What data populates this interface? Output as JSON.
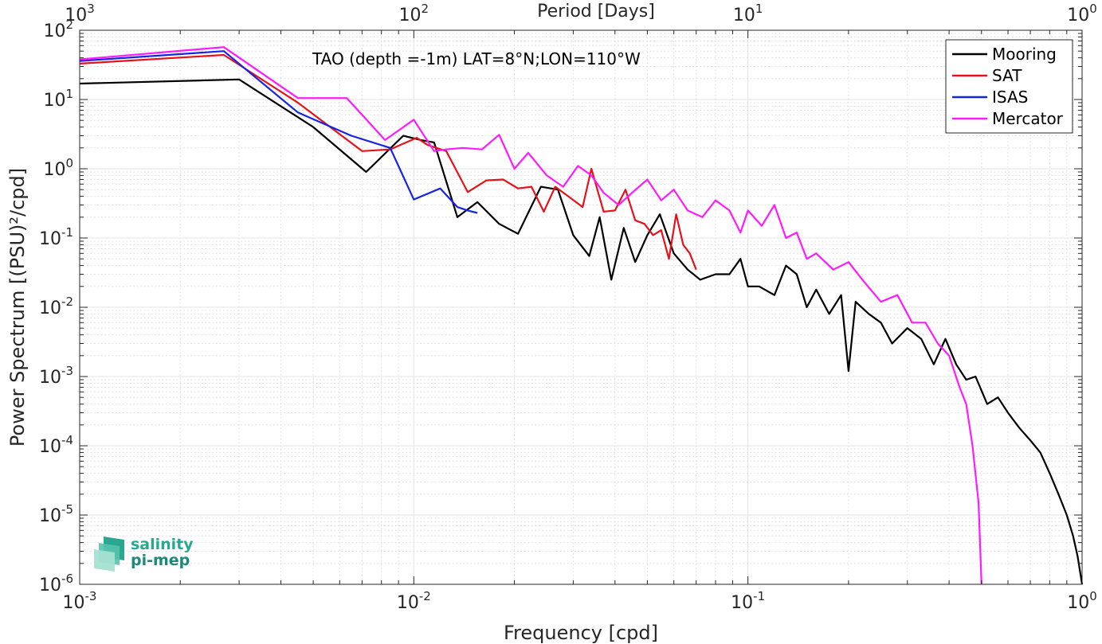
{
  "chart_data": {
    "type": "line",
    "title": "TAO (depth =-1m) LAT=8°N;LON=110°W",
    "xlabel": "Frequency [cpd]",
    "ylabel": "Power Spectrum [(PSU)²/cpd]",
    "x2label": "Period [Days]",
    "xscale": "log",
    "yscale": "log",
    "xlim": [
      0.001,
      1
    ],
    "ylim": [
      1e-06,
      100
    ],
    "grid": true,
    "legend_position": "top-right",
    "x_ticks": [
      {
        "base": "10",
        "exp": "-3",
        "v": 0.001
      },
      {
        "base": "10",
        "exp": "-2",
        "v": 0.01
      },
      {
        "base": "10",
        "exp": "-1",
        "v": 0.1
      },
      {
        "base": "10",
        "exp": "0",
        "v": 1
      }
    ],
    "y_ticks": [
      {
        "base": "10",
        "exp": "2",
        "v": 100
      },
      {
        "base": "10",
        "exp": "1",
        "v": 10
      },
      {
        "base": "10",
        "exp": "0",
        "v": 1
      },
      {
        "base": "10",
        "exp": "-1",
        "v": 0.1
      },
      {
        "base": "10",
        "exp": "-2",
        "v": 0.01
      },
      {
        "base": "10",
        "exp": "-3",
        "v": 0.001
      },
      {
        "base": "10",
        "exp": "-4",
        "v": 0.0001
      },
      {
        "base": "10",
        "exp": "-5",
        "v": 1e-05
      },
      {
        "base": "10",
        "exp": "-6",
        "v": 1e-06
      }
    ],
    "top_ticks": [
      {
        "base": "10",
        "exp": "3",
        "v": 0.001
      },
      {
        "base": "10",
        "exp": "2",
        "v": 0.01
      },
      {
        "base": "10",
        "exp": "1",
        "v": 0.1
      },
      {
        "base": "10",
        "exp": "0",
        "v": 1
      }
    ],
    "series": [
      {
        "name": "Mooring",
        "color": "#000000",
        "x": [
          0.001,
          0.003,
          0.005,
          0.0072,
          0.0093,
          0.0105,
          0.0115,
          0.0135,
          0.0155,
          0.018,
          0.0205,
          0.024,
          0.027,
          0.03,
          0.0335,
          0.036,
          0.039,
          0.0425,
          0.046,
          0.05,
          0.0545,
          0.06,
          0.066,
          0.072,
          0.08,
          0.088,
          0.095,
          0.1,
          0.108,
          0.12,
          0.13,
          0.14,
          0.15,
          0.16,
          0.175,
          0.19,
          0.2,
          0.21,
          0.23,
          0.25,
          0.27,
          0.3,
          0.33,
          0.36,
          0.39,
          0.42,
          0.45,
          0.48,
          0.52,
          0.56,
          0.6,
          0.65,
          0.7,
          0.75,
          0.8,
          0.85,
          0.9,
          0.94,
          0.97,
          1.0
        ],
        "y": [
          17,
          19.5,
          4,
          0.9,
          3,
          2.6,
          2.4,
          0.2,
          0.33,
          0.16,
          0.115,
          0.55,
          0.5,
          0.11,
          0.055,
          0.2,
          0.025,
          0.14,
          0.045,
          0.11,
          0.22,
          0.06,
          0.035,
          0.025,
          0.03,
          0.03,
          0.05,
          0.02,
          0.02,
          0.015,
          0.04,
          0.03,
          0.01,
          0.018,
          0.008,
          0.015,
          0.0012,
          0.012,
          0.008,
          0.006,
          0.003,
          0.005,
          0.0035,
          0.0015,
          0.0035,
          0.0015,
          0.0009,
          0.001,
          0.0004,
          0.0005,
          0.0003,
          0.00018,
          0.00012,
          8e-05,
          4e-05,
          2e-05,
          1e-05,
          5e-06,
          2.5e-06,
          1e-06
        ]
      },
      {
        "name": "SAT",
        "color": "#e8111a",
        "x": [
          0.001,
          0.0027,
          0.0045,
          0.007,
          0.0085,
          0.0102,
          0.011,
          0.0125,
          0.0145,
          0.0165,
          0.0185,
          0.0205,
          0.0225,
          0.0245,
          0.0265,
          0.029,
          0.032,
          0.034,
          0.037,
          0.04,
          0.043,
          0.046,
          0.049,
          0.052,
          0.055,
          0.058,
          0.061,
          0.064,
          0.067,
          0.07
        ],
        "y": [
          33,
          44,
          9,
          1.8,
          1.9,
          2.8,
          2.2,
          1.8,
          0.46,
          0.68,
          0.7,
          0.52,
          0.55,
          0.24,
          0.55,
          0.4,
          0.28,
          1.0,
          0.24,
          0.25,
          0.5,
          0.18,
          0.16,
          0.11,
          0.13,
          0.05,
          0.22,
          0.08,
          0.06,
          0.035
        ]
      },
      {
        "name": "ISAS",
        "color": "#1524e6",
        "x": [
          0.001,
          0.0027,
          0.0045,
          0.0065,
          0.0085,
          0.01,
          0.012,
          0.0135,
          0.0145,
          0.0155
        ],
        "y": [
          36,
          50,
          6.5,
          3,
          2,
          0.36,
          0.52,
          0.28,
          0.25,
          0.23
        ]
      },
      {
        "name": "Mercator",
        "color": "#ff1aff",
        "x": [
          0.001,
          0.0027,
          0.0045,
          0.0063,
          0.0082,
          0.01,
          0.0115,
          0.0125,
          0.014,
          0.016,
          0.018,
          0.02,
          0.022,
          0.025,
          0.028,
          0.031,
          0.034,
          0.037,
          0.041,
          0.045,
          0.05,
          0.055,
          0.06,
          0.066,
          0.073,
          0.08,
          0.088,
          0.095,
          0.1,
          0.11,
          0.12,
          0.13,
          0.14,
          0.15,
          0.16,
          0.18,
          0.2,
          0.22,
          0.25,
          0.28,
          0.31,
          0.34,
          0.37,
          0.4,
          0.43,
          0.45,
          0.47,
          0.49,
          0.5
        ],
        "y": [
          38,
          57,
          10.5,
          10.5,
          2.6,
          5.1,
          1.8,
          1.9,
          2.0,
          1.9,
          3.1,
          1.0,
          1.7,
          0.8,
          0.55,
          1.1,
          0.8,
          0.45,
          0.3,
          0.45,
          0.7,
          0.35,
          0.5,
          0.25,
          0.2,
          0.35,
          0.25,
          0.12,
          0.25,
          0.15,
          0.3,
          0.1,
          0.12,
          0.05,
          0.06,
          0.035,
          0.045,
          0.025,
          0.012,
          0.015,
          0.006,
          0.006,
          0.003,
          0.002,
          0.0007,
          0.0004,
          0.0001,
          1.5e-05,
          1e-06
        ]
      }
    ]
  },
  "logo": {
    "line1": "salinity",
    "line2": "pi-mep"
  }
}
